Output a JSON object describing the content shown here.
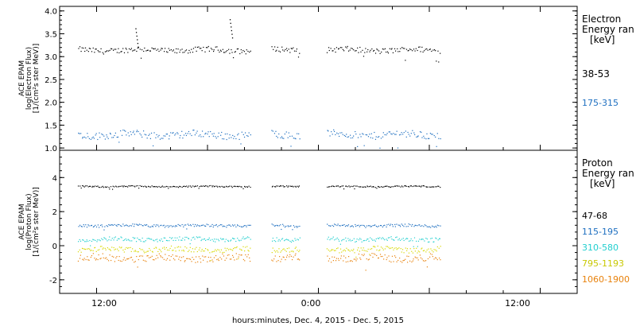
{
  "xlabel": "hours:minutes, Dec.  4, 2015 - Dec.  5, 2015",
  "x_ticks": [
    "12:00",
    "0:00",
    "12:00"
  ],
  "chart_data": [
    {
      "type": "scatter",
      "ylabel": [
        "ACE EPAM",
        "log(Electron Flux)",
        "[1/(cm²s ster MeV)]"
      ],
      "ylim": [
        0.95,
        4.1
      ],
      "y_ticks": [
        "1.0",
        "1.5",
        "2.0",
        "2.5",
        "3.0",
        "3.5",
        "4.0"
      ],
      "y_tick_values": [
        1.0,
        1.5,
        2.0,
        2.5,
        3.0,
        3.5,
        4.0
      ],
      "legend_title": [
        "Electron",
        "Energy ran",
        "[keV]"
      ],
      "series": [
        {
          "name": "38-53",
          "color": "#000000",
          "base": 3.15,
          "spread": 0.06
        },
        {
          "name": "175-315",
          "color": "#1e6fc0",
          "base": 1.3,
          "spread": 0.08
        }
      ],
      "annotations_spikes": [
        {
          "x_hour": 8.1,
          "y": 3.62
        },
        {
          "x_hour": 13.2,
          "y": 3.82
        }
      ]
    },
    {
      "type": "scatter",
      "ylabel": [
        "ACE EPAM",
        "log(Proton Flux)",
        "[1/(cm²s ster MeV)]"
      ],
      "ylim": [
        -2.8,
        5.6
      ],
      "y_ticks": [
        "-2",
        "0",
        "2",
        "4"
      ],
      "y_tick_values": [
        -2,
        0,
        2,
        4
      ],
      "legend_title": [
        "Proton",
        "Energy ran",
        "[keV]"
      ],
      "series": [
        {
          "name": "47-68",
          "color": "#000000",
          "base": 3.5,
          "spread": 0.04
        },
        {
          "name": "115-195",
          "color": "#1e6fc0",
          "base": 1.2,
          "spread": 0.08
        },
        {
          "name": "310-580",
          "color": "#22cfcf",
          "base": 0.4,
          "spread": 0.12
        },
        {
          "name": "795-1193",
          "color": "#d8d800",
          "base": -0.2,
          "spread": 0.15
        },
        {
          "name": "1060-1900",
          "color": "#e8820c",
          "base": -0.7,
          "spread": 0.2
        }
      ]
    }
  ],
  "x_range_hours": [
    4,
    32
  ],
  "data_start_hour": 5,
  "data_end_hour": 24.6,
  "gaps_hours": [
    [
      14.3,
      15.4
    ],
    [
      17.0,
      18.4
    ]
  ]
}
